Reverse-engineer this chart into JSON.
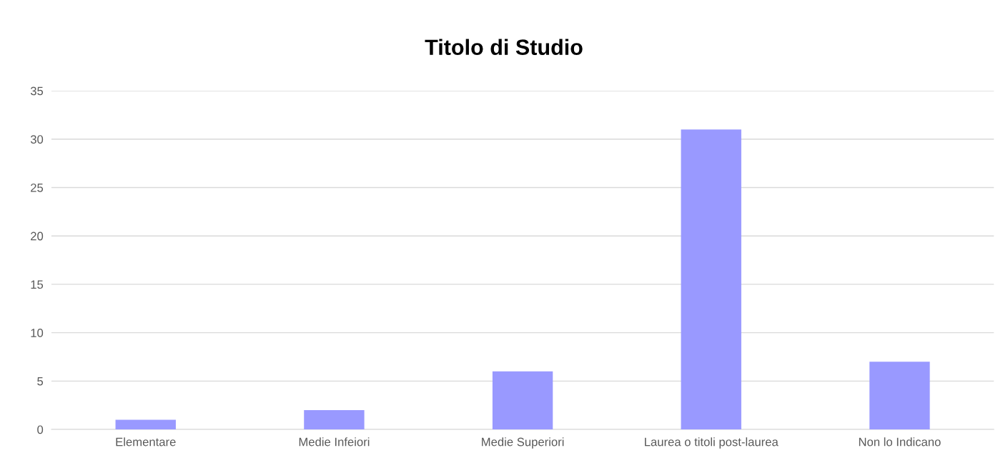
{
  "chart_data": {
    "type": "bar",
    "title": "Titolo di Studio",
    "categories": [
      "Elementare",
      "Medie Infeiori",
      "Medie Superiori",
      "Laurea o titoli post-laurea",
      "Non lo Indicano"
    ],
    "values": [
      1,
      2,
      6,
      31,
      7
    ],
    "color": "#9999ff",
    "ylim": [
      0,
      35
    ],
    "yticks": [
      0,
      5,
      10,
      15,
      20,
      25,
      30,
      35
    ],
    "grid": "y",
    "legend": false
  }
}
